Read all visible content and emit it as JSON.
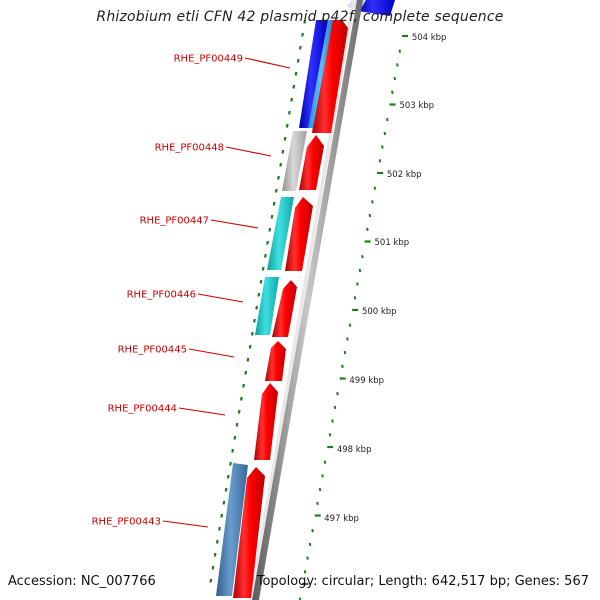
{
  "title": "Rhizobium etli CFN 42 plasmid p42f, complete sequence",
  "footer": {
    "accession": "Accession: NC_007766",
    "summary": "Topology: circular; Length: 642,517 bp; Genes: 567"
  },
  "colors": {
    "forward_cds": "#ff0000",
    "label": "#cc0000",
    "backbone": "#888888",
    "tick": "#1a7f1a",
    "cog_blue": "#1a1aff",
    "cog_cyan": "#22c8c8",
    "cog_grey": "#b0b0b0",
    "cog_steelblue": "#4a82b8"
  },
  "gene_labels": [
    "RHE_PF00449",
    "RHE_PF00448",
    "RHE_PF00447",
    "RHE_PF00446",
    "RHE_PF00445",
    "RHE_PF00444",
    "RHE_PF00443"
  ],
  "tick_labels": [
    "504 kbp",
    "503 kbp",
    "502 kbp",
    "501 kbp",
    "500 kbp",
    "499 kbp",
    "498 kbp",
    "497 kbp"
  ]
}
